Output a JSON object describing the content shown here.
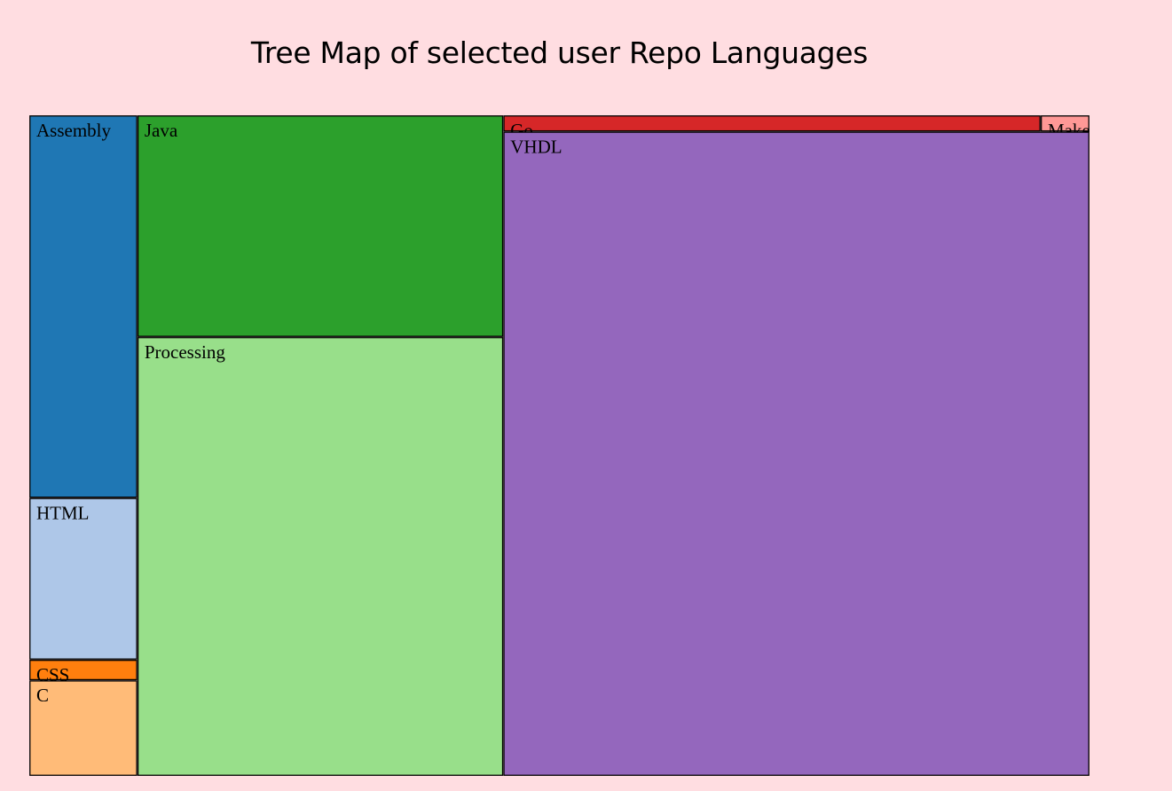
{
  "title": "Tree Map of selected user Repo Languages",
  "chart_data": {
    "type": "treemap",
    "title": "Tree Map of selected user Repo Languages",
    "cells": [
      {
        "name": "Assembly",
        "label": "Assembly",
        "value": 5.2,
        "color": "#1f77b4"
      },
      {
        "name": "HTML",
        "label": "HTML",
        "value": 2.2,
        "color": "#aec7e8"
      },
      {
        "name": "CSS",
        "label": "CSS",
        "value": 0.28,
        "color": "#ff7f0e"
      },
      {
        "name": "C",
        "label": "C",
        "value": 1.3,
        "color": "#ffbb78"
      },
      {
        "name": "Java",
        "label": "Java",
        "value": 10.2,
        "color": "#2ca02c"
      },
      {
        "name": "Processing",
        "label": "Processing",
        "value": 20.2,
        "color": "#98df8a"
      },
      {
        "name": "Go",
        "label": "Go",
        "value": 1.1,
        "color": "#d62728"
      },
      {
        "name": "Makefile",
        "label": "Make",
        "value": 0.1,
        "color": "#ff9896"
      },
      {
        "name": "VHDL",
        "label": "VHDL",
        "value": 47.5,
        "color": "#9467bd"
      }
    ]
  }
}
